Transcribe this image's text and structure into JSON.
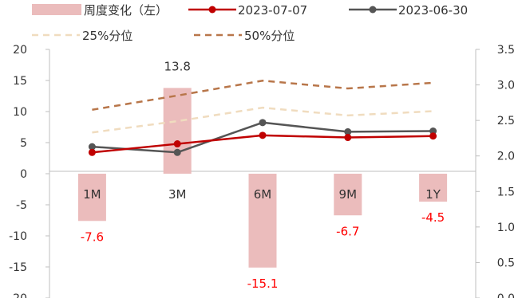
{
  "chart_data": {
    "type": "bar+line",
    "categories": [
      "1M",
      "3M",
      "6M",
      "9M",
      "1Y"
    ],
    "left_axis": {
      "min": -20,
      "max": 20,
      "step": 5,
      "ticks": [
        "20",
        "15",
        "10",
        "5",
        "0",
        "-5",
        "-10",
        "-15",
        "-20"
      ]
    },
    "right_axis": {
      "min": 0.0,
      "max": 3.5,
      "step": 0.5,
      "ticks": [
        "3.5",
        "3.0",
        "2.5",
        "2.0",
        "1.5",
        "1.0",
        "0.5",
        "0.0"
      ]
    },
    "bars": {
      "name": "周度变化（左）",
      "values": [
        -7.6,
        13.8,
        -15.1,
        -6.7,
        -4.5
      ],
      "labels": [
        "-7.6",
        "13.8",
        "-15.1",
        "-6.7",
        "-4.5"
      ],
      "color": "#ebbcbc"
    },
    "series": [
      {
        "name": "2023-07-07",
        "axis": "right",
        "values": [
          2.05,
          2.17,
          2.29,
          2.26,
          2.28
        ],
        "color": "#c00000",
        "style": "solid",
        "marker": true
      },
      {
        "name": "2023-06-30",
        "axis": "right",
        "values": [
          2.13,
          2.05,
          2.47,
          2.34,
          2.35
        ],
        "color": "#555555",
        "style": "solid",
        "marker": true
      },
      {
        "name": "25%分位",
        "axis": "right",
        "values": [
          2.33,
          2.49,
          2.68,
          2.57,
          2.63
        ],
        "color": "#f0dcbf",
        "style": "dashed",
        "marker": false
      },
      {
        "name": "50%分位",
        "axis": "right",
        "values": [
          2.65,
          2.85,
          3.06,
          2.95,
          3.03
        ],
        "color": "#b8764a",
        "style": "dashed",
        "marker": false
      }
    ],
    "label_colors": {
      "negative": "#ff0000",
      "positive": "#333333"
    }
  }
}
